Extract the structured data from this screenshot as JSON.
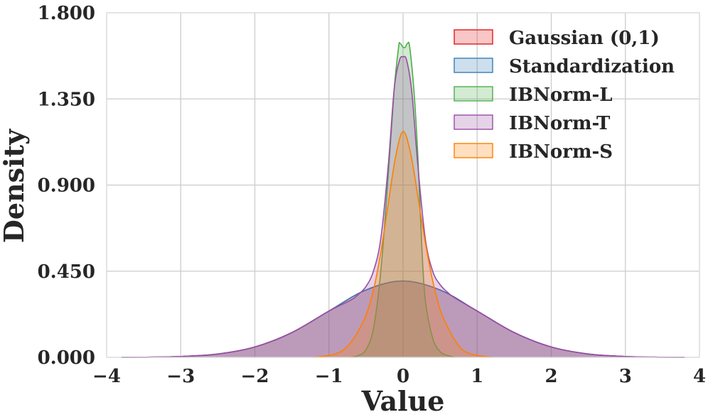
{
  "chart_data": {
    "type": "area",
    "title": "",
    "xlabel": "Value",
    "ylabel": "Density",
    "xlim": [
      -4,
      4
    ],
    "ylim": [
      0,
      1.8
    ],
    "x_ticks": [
      -4,
      -3,
      -2,
      -1,
      0,
      1,
      2,
      3,
      4
    ],
    "x_tick_labels": [
      "−4",
      "−3",
      "−2",
      "−1",
      "0",
      "1",
      "2",
      "3",
      "4"
    ],
    "y_ticks": [
      0,
      0.45,
      0.9,
      1.35,
      1.8
    ],
    "y_tick_labels": [
      "0.000",
      "0.450",
      "0.900",
      "1.350",
      "1.800"
    ],
    "grid": true,
    "legend_position": "top-right",
    "series": [
      {
        "name": "Gaussian (0,1)",
        "color": "#e41a1c",
        "points": [
          [
            -3.8,
            0.0003
          ],
          [
            -3.5,
            0.0009
          ],
          [
            -3,
            0.0044
          ],
          [
            -2.5,
            0.0175
          ],
          [
            -2,
            0.054
          ],
          [
            -1.5,
            0.1295
          ],
          [
            -1,
            0.242
          ],
          [
            -0.5,
            0.352
          ],
          [
            0,
            0.399
          ],
          [
            0.5,
            0.352
          ],
          [
            1,
            0.242
          ],
          [
            1.5,
            0.1295
          ],
          [
            2,
            0.054
          ],
          [
            2.5,
            0.0175
          ],
          [
            3,
            0.0044
          ],
          [
            3.5,
            0.0009
          ],
          [
            3.8,
            0.0003
          ]
        ]
      },
      {
        "name": "Standardization",
        "color": "#377eb8",
        "points": [
          [
            -3.8,
            0.0003
          ],
          [
            -3.5,
            0.0009
          ],
          [
            -3,
            0.0044
          ],
          [
            -2.5,
            0.0175
          ],
          [
            -2,
            0.054
          ],
          [
            -1.5,
            0.1295
          ],
          [
            -1,
            0.242
          ],
          [
            -0.5,
            0.352
          ],
          [
            0,
            0.399
          ],
          [
            0.5,
            0.352
          ],
          [
            1,
            0.242
          ],
          [
            1.5,
            0.1295
          ],
          [
            2,
            0.054
          ],
          [
            2.5,
            0.0175
          ],
          [
            3,
            0.0044
          ],
          [
            3.5,
            0.0009
          ],
          [
            3.8,
            0.0003
          ]
        ]
      },
      {
        "name": "IBNorm-L",
        "color": "#4daf4a",
        "points": [
          [
            -0.7,
            0
          ],
          [
            -0.6,
            0.01
          ],
          [
            -0.5,
            0.04
          ],
          [
            -0.4,
            0.15
          ],
          [
            -0.3,
            0.45
          ],
          [
            -0.2,
            0.95
          ],
          [
            -0.12,
            1.4
          ],
          [
            -0.06,
            1.62
          ],
          [
            -0.04,
            1.64
          ],
          [
            0,
            1.62
          ],
          [
            0.03,
            1.62
          ],
          [
            0.06,
            1.64
          ],
          [
            0.09,
            1.62
          ],
          [
            0.15,
            1.38
          ],
          [
            0.2,
            1.05
          ],
          [
            0.25,
            0.6
          ],
          [
            0.3,
            0.3
          ],
          [
            0.4,
            0.1
          ],
          [
            0.5,
            0.03
          ],
          [
            0.6,
            0.01
          ],
          [
            0.7,
            0
          ]
        ]
      },
      {
        "name": "IBNorm-T",
        "color": "#984ea3",
        "points": [
          [
            -3.8,
            0.0003
          ],
          [
            -3.5,
            0.0009
          ],
          [
            -3,
            0.0044
          ],
          [
            -2.5,
            0.0175
          ],
          [
            -2,
            0.054
          ],
          [
            -1.5,
            0.1295
          ],
          [
            -1,
            0.242
          ],
          [
            -0.7,
            0.3
          ],
          [
            -0.6,
            0.33
          ],
          [
            -0.5,
            0.37
          ],
          [
            -0.4,
            0.45
          ],
          [
            -0.3,
            0.62
          ],
          [
            -0.2,
            1.0
          ],
          [
            -0.12,
            1.4
          ],
          [
            -0.05,
            1.55
          ],
          [
            0,
            1.57
          ],
          [
            0.05,
            1.55
          ],
          [
            0.12,
            1.38
          ],
          [
            0.2,
            1.0
          ],
          [
            0.3,
            0.62
          ],
          [
            0.4,
            0.45
          ],
          [
            0.5,
            0.38
          ],
          [
            0.6,
            0.34
          ],
          [
            0.7,
            0.31
          ],
          [
            1,
            0.242
          ],
          [
            1.5,
            0.1295
          ],
          [
            2,
            0.054
          ],
          [
            2.5,
            0.0175
          ],
          [
            3,
            0.0044
          ],
          [
            3.5,
            0.0009
          ],
          [
            3.8,
            0.0003
          ]
        ]
      },
      {
        "name": "IBNorm-S",
        "color": "#ff7f00",
        "points": [
          [
            -1.2,
            0
          ],
          [
            -1.0,
            0.01
          ],
          [
            -0.9,
            0.02
          ],
          [
            -0.8,
            0.04
          ],
          [
            -0.7,
            0.08
          ],
          [
            -0.6,
            0.14
          ],
          [
            -0.5,
            0.22
          ],
          [
            -0.4,
            0.35
          ],
          [
            -0.3,
            0.55
          ],
          [
            -0.2,
            0.8
          ],
          [
            -0.1,
            1.05
          ],
          [
            0,
            1.18
          ],
          [
            0.1,
            1.07
          ],
          [
            0.2,
            0.84
          ],
          [
            0.3,
            0.6
          ],
          [
            0.4,
            0.4
          ],
          [
            0.5,
            0.25
          ],
          [
            0.6,
            0.16
          ],
          [
            0.7,
            0.09
          ],
          [
            0.8,
            0.04
          ],
          [
            0.9,
            0.02
          ],
          [
            1.0,
            0.01
          ],
          [
            1.2,
            0
          ]
        ]
      }
    ]
  }
}
